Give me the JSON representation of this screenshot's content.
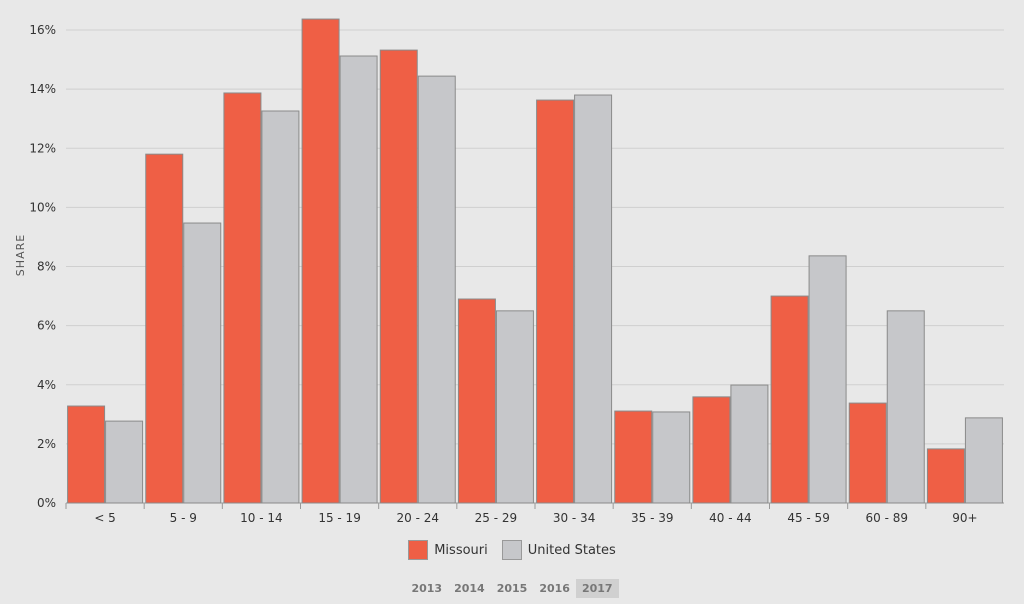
{
  "chart_data": {
    "type": "bar",
    "title": "",
    "xlabel": "",
    "ylabel": "SHARE",
    "ylim": [
      0,
      16
    ],
    "yticks": [
      "0%",
      "2%",
      "4%",
      "6%",
      "8%",
      "10%",
      "12%",
      "14%",
      "16%"
    ],
    "grid": true,
    "legend_position": "bottom",
    "categories": [
      "< 5",
      "5 - 9",
      "10 - 14",
      "15 - 19",
      "20 - 24",
      "25 - 29",
      "30 - 34",
      "35 - 39",
      "40 - 44",
      "45 - 59",
      "60 - 89",
      "90+"
    ],
    "series": [
      {
        "name": "Missouri",
        "color": "#ef5f45",
        "values": [
          3.28,
          11.8,
          13.87,
          16.37,
          15.32,
          6.9,
          13.63,
          3.11,
          3.59,
          7.0,
          3.38,
          1.83
        ]
      },
      {
        "name": "United States",
        "color": "#c6c7ca",
        "values": [
          2.77,
          9.47,
          13.26,
          15.12,
          14.44,
          6.5,
          13.8,
          3.08,
          3.99,
          8.36,
          6.5,
          2.88
        ]
      }
    ]
  },
  "years": [
    "2013",
    "2014",
    "2015",
    "2016",
    "2017"
  ],
  "selected_year": "2017"
}
